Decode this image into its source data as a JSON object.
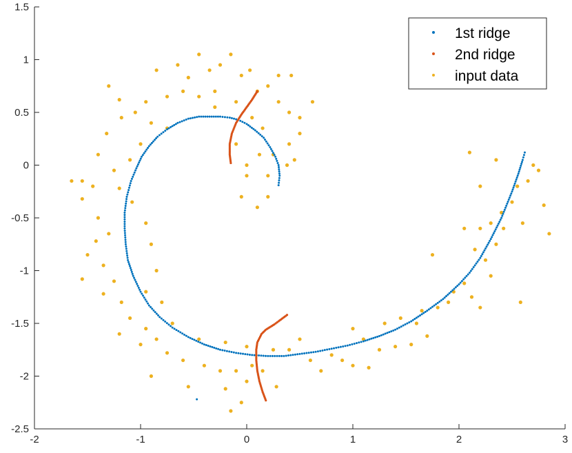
{
  "chart_data": {
    "type": "scatter",
    "title": "",
    "xlabel": "",
    "ylabel": "",
    "xlim": [
      -2,
      3
    ],
    "ylim": [
      -2.5,
      1.5
    ],
    "xticks": [
      "-2",
      "-1",
      "0",
      "1",
      "2",
      "3"
    ],
    "yticks": [
      "1.5",
      "1",
      "0.5",
      "0",
      "-0.5",
      "-1",
      "-1.5",
      "-2",
      "-2.5"
    ],
    "grid": false,
    "legend_position": "top-right",
    "series": [
      {
        "name": "1st ridge",
        "color": "#0072BD",
        "marker": "small-dot",
        "description": "dense curve along spiral from (0.3,-0.2) through top and left to (2.62,0.12)",
        "points": [
          [
            0.3,
            -0.19
          ],
          [
            0.31,
            -0.1
          ],
          [
            0.3,
            0.0
          ],
          [
            0.27,
            0.08
          ],
          [
            0.22,
            0.17
          ],
          [
            0.16,
            0.26
          ],
          [
            0.08,
            0.33
          ],
          [
            0.0,
            0.39
          ],
          [
            -0.08,
            0.43
          ],
          [
            -0.16,
            0.45
          ],
          [
            -0.25,
            0.46
          ],
          [
            -0.35,
            0.46
          ],
          [
            -0.45,
            0.46
          ],
          [
            -0.55,
            0.44
          ],
          [
            -0.65,
            0.4
          ],
          [
            -0.75,
            0.34
          ],
          [
            -0.84,
            0.27
          ],
          [
            -0.92,
            0.18
          ],
          [
            -0.99,
            0.08
          ],
          [
            -1.04,
            -0.03
          ],
          [
            -1.09,
            -0.15
          ],
          [
            -1.13,
            -0.3
          ],
          [
            -1.15,
            -0.45
          ],
          [
            -1.15,
            -0.6
          ],
          [
            -1.14,
            -0.75
          ],
          [
            -1.12,
            -0.9
          ],
          [
            -1.07,
            -1.05
          ],
          [
            -1.0,
            -1.2
          ],
          [
            -0.92,
            -1.33
          ],
          [
            -0.82,
            -1.44
          ],
          [
            -0.7,
            -1.54
          ],
          [
            -0.55,
            -1.63
          ],
          [
            -0.4,
            -1.7
          ],
          [
            -0.25,
            -1.75
          ],
          [
            -0.1,
            -1.78
          ],
          [
            0.05,
            -1.8
          ],
          [
            0.2,
            -1.81
          ],
          [
            0.35,
            -1.81
          ],
          [
            0.5,
            -1.79
          ],
          [
            0.65,
            -1.77
          ],
          [
            0.8,
            -1.74
          ],
          [
            0.95,
            -1.71
          ],
          [
            1.1,
            -1.67
          ],
          [
            1.25,
            -1.62
          ],
          [
            1.4,
            -1.56
          ],
          [
            1.55,
            -1.48
          ],
          [
            1.7,
            -1.38
          ],
          [
            1.85,
            -1.27
          ],
          [
            2.0,
            -1.13
          ],
          [
            2.1,
            -1.02
          ],
          [
            2.2,
            -0.88
          ],
          [
            2.3,
            -0.7
          ],
          [
            2.4,
            -0.5
          ],
          [
            2.5,
            -0.25
          ],
          [
            2.56,
            -0.08
          ],
          [
            2.6,
            0.05
          ],
          [
            2.62,
            0.12
          ],
          [
            -0.47,
            -2.22
          ]
        ]
      },
      {
        "name": "2nd ridge",
        "color": "#D95319",
        "marker": "small-dot",
        "description": "two short curved segments",
        "segments": [
          [
            [
              -0.15,
              0.02
            ],
            [
              -0.16,
              0.1
            ],
            [
              -0.16,
              0.2
            ],
            [
              -0.14,
              0.3
            ],
            [
              -0.1,
              0.4
            ],
            [
              -0.05,
              0.48
            ],
            [
              0.0,
              0.55
            ],
            [
              0.05,
              0.62
            ],
            [
              0.1,
              0.7
            ]
          ],
          [
            [
              0.18,
              -2.23
            ],
            [
              0.15,
              -2.15
            ],
            [
              0.12,
              -2.05
            ],
            [
              0.1,
              -1.95
            ],
            [
              0.09,
              -1.85
            ],
            [
              0.09,
              -1.75
            ],
            [
              0.1,
              -1.68
            ],
            [
              0.14,
              -1.6
            ],
            [
              0.18,
              -1.56
            ],
            [
              0.26,
              -1.51
            ],
            [
              0.3,
              -1.48
            ],
            [
              0.38,
              -1.42
            ]
          ]
        ]
      },
      {
        "name": "input data",
        "color": "#EDB120",
        "marker": "dot",
        "description": "noisy spiral point cloud around the 1st ridge",
        "points": [
          [
            -0.65,
            0.95
          ],
          [
            -0.55,
            0.83
          ],
          [
            -0.45,
            1.05
          ],
          [
            -0.35,
            0.9
          ],
          [
            -0.25,
            0.95
          ],
          [
            -0.15,
            1.05
          ],
          [
            -0.05,
            0.85
          ],
          [
            0.03,
            0.9
          ],
          [
            0.1,
            0.7
          ],
          [
            0.2,
            0.75
          ],
          [
            0.3,
            0.85
          ],
          [
            0.42,
            0.85
          ],
          [
            0.3,
            0.6
          ],
          [
            0.4,
            0.5
          ],
          [
            0.5,
            0.45
          ],
          [
            0.62,
            0.6
          ],
          [
            0.5,
            0.3
          ],
          [
            0.4,
            0.2
          ],
          [
            0.45,
            0.05
          ],
          [
            0.38,
            0.0
          ],
          [
            0.25,
            0.1
          ],
          [
            0.15,
            0.35
          ],
          [
            0.05,
            0.45
          ],
          [
            0.2,
            -0.1
          ],
          [
            0.0,
            -0.1
          ],
          [
            -0.1,
            0.2
          ],
          [
            -0.3,
            0.7
          ],
          [
            -0.45,
            0.65
          ],
          [
            -0.6,
            0.7
          ],
          [
            -0.75,
            0.65
          ],
          [
            -0.85,
            0.9
          ],
          [
            -0.95,
            0.6
          ],
          [
            -1.05,
            0.5
          ],
          [
            -1.2,
            0.62
          ],
          [
            -1.3,
            0.75
          ],
          [
            -1.18,
            0.45
          ],
          [
            -1.32,
            0.3
          ],
          [
            -1.4,
            0.1
          ],
          [
            -1.25,
            -0.05
          ],
          [
            -1.45,
            -0.2
          ],
          [
            -1.55,
            -0.15
          ],
          [
            -1.65,
            -0.15
          ],
          [
            -1.55,
            -0.32
          ],
          [
            -1.4,
            -0.5
          ],
          [
            -1.3,
            -0.65
          ],
          [
            -1.42,
            -0.72
          ],
          [
            -1.5,
            -0.85
          ],
          [
            -1.35,
            -0.95
          ],
          [
            -1.55,
            -1.08
          ],
          [
            -1.25,
            -1.1
          ],
          [
            -1.18,
            -1.3
          ],
          [
            -1.35,
            -1.22
          ],
          [
            -1.1,
            -1.45
          ],
          [
            -1.2,
            -1.6
          ],
          [
            -0.95,
            -1.55
          ],
          [
            -1.0,
            -1.7
          ],
          [
            -0.85,
            -1.65
          ],
          [
            -0.75,
            -1.78
          ],
          [
            -0.6,
            -1.85
          ],
          [
            -0.9,
            -2.0
          ],
          [
            -0.55,
            -2.1
          ],
          [
            -0.4,
            -1.9
          ],
          [
            -0.25,
            -1.95
          ],
          [
            -0.1,
            -1.95
          ],
          [
            -0.2,
            -2.12
          ],
          [
            -0.05,
            -2.25
          ],
          [
            0.0,
            -2.05
          ],
          [
            -0.15,
            -2.33
          ],
          [
            0.05,
            -1.9
          ],
          [
            0.25,
            -1.75
          ],
          [
            0.15,
            -1.95
          ],
          [
            0.28,
            -2.1
          ],
          [
            0.4,
            -1.75
          ],
          [
            0.5,
            -1.65
          ],
          [
            0.6,
            -1.85
          ],
          [
            0.7,
            -1.95
          ],
          [
            0.8,
            -1.8
          ],
          [
            0.9,
            -1.85
          ],
          [
            1.0,
            -1.9
          ],
          [
            1.15,
            -1.92
          ],
          [
            1.0,
            -1.55
          ],
          [
            1.1,
            -1.65
          ],
          [
            1.25,
            -1.75
          ],
          [
            1.4,
            -1.72
          ],
          [
            1.55,
            -1.7
          ],
          [
            1.3,
            -1.5
          ],
          [
            1.45,
            -1.45
          ],
          [
            1.6,
            -1.5
          ],
          [
            1.7,
            -1.62
          ],
          [
            1.65,
            -1.38
          ],
          [
            1.8,
            -1.35
          ],
          [
            1.9,
            -1.3
          ],
          [
            1.95,
            -1.2
          ],
          [
            2.05,
            -1.12
          ],
          [
            2.12,
            -1.25
          ],
          [
            2.2,
            -1.35
          ],
          [
            2.15,
            -0.8
          ],
          [
            2.25,
            -0.9
          ],
          [
            2.3,
            -1.05
          ],
          [
            2.35,
            -0.75
          ],
          [
            2.2,
            -0.6
          ],
          [
            2.05,
            -0.6
          ],
          [
            2.3,
            -0.55
          ],
          [
            2.4,
            -0.45
          ],
          [
            2.5,
            -0.35
          ],
          [
            2.55,
            -0.2
          ],
          [
            2.65,
            -0.15
          ],
          [
            2.7,
            0.0
          ],
          [
            2.75,
            -0.05
          ],
          [
            2.8,
            -0.38
          ],
          [
            2.85,
            -0.65
          ],
          [
            2.6,
            -0.55
          ],
          [
            2.58,
            -1.3
          ],
          [
            2.42,
            -0.6
          ],
          [
            1.75,
            -0.85
          ],
          [
            2.35,
            0.05
          ],
          [
            2.1,
            0.12
          ],
          [
            2.2,
            -0.2
          ],
          [
            -0.75,
            0.35
          ],
          [
            -0.9,
            0.4
          ],
          [
            -1.0,
            0.2
          ],
          [
            -1.1,
            0.05
          ],
          [
            -1.2,
            -0.22
          ],
          [
            -1.08,
            -0.35
          ],
          [
            -0.95,
            -0.55
          ],
          [
            -0.9,
            -0.75
          ],
          [
            -0.85,
            -1.0
          ],
          [
            -0.95,
            -1.2
          ],
          [
            -0.8,
            -1.3
          ],
          [
            -0.7,
            -1.5
          ],
          [
            -0.45,
            -1.65
          ],
          [
            -0.2,
            -1.68
          ],
          [
            0.0,
            -1.72
          ],
          [
            -0.3,
            0.55
          ],
          [
            -0.1,
            0.6
          ],
          [
            0.12,
            0.1
          ],
          [
            0.0,
            0.0
          ],
          [
            -0.05,
            -0.3
          ],
          [
            0.2,
            -0.3
          ],
          [
            0.1,
            -0.4
          ]
        ]
      }
    ]
  }
}
